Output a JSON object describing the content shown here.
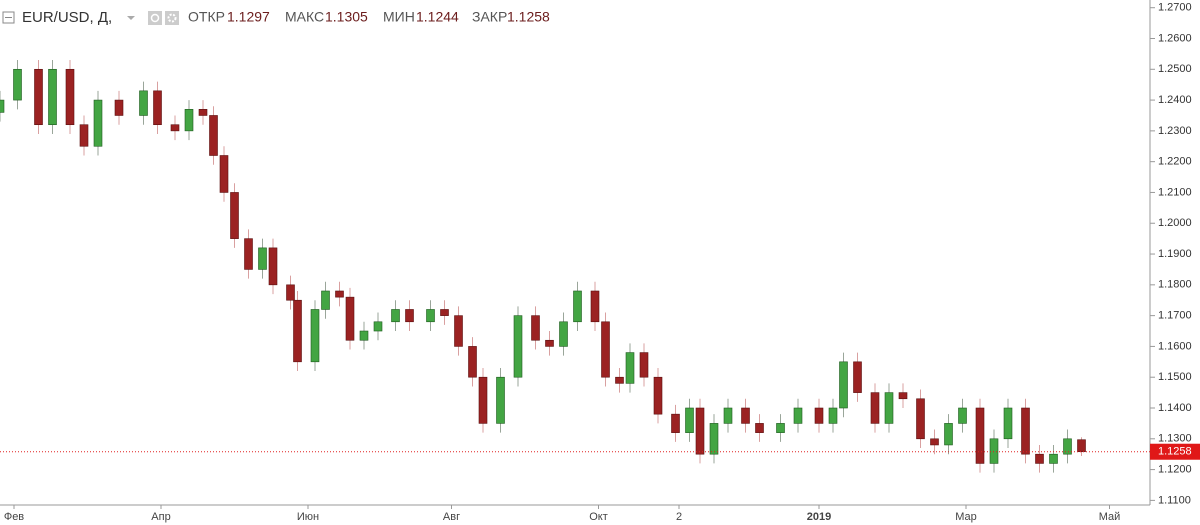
{
  "chart_data": {
    "type": "candlestick",
    "header": {
      "symbol": "EUR/USD, Д,",
      "open_label": "ОТКР",
      "high_label": "МАКС",
      "low_label": "МИН",
      "close_label": "ЗАКР"
    },
    "up_color": "#43a543",
    "down_color": "#9b2222",
    "x": [
      -4,
      1,
      7,
      11,
      16,
      20,
      24,
      30,
      37,
      41,
      46,
      50,
      54,
      57,
      60,
      63,
      67,
      71,
      74,
      79,
      81,
      86,
      89,
      93,
      96,
      100,
      104,
      109,
      113,
      119,
      123,
      127,
      131,
      134,
      139,
      144,
      149,
      153,
      157,
      161,
      166,
      169,
      173,
      176,
      180,
      184,
      189,
      193,
      196,
      200,
      204,
      209,
      213,
      219,
      224,
      230,
      234,
      237,
      241,
      246,
      250,
      254,
      259,
      263,
      267,
      271,
      276,
      280,
      284,
      289,
      293,
      297,
      301,
      305
    ],
    "open": [
      1.236,
      1.24,
      1.25,
      1.232,
      1.25,
      1.232,
      1.225,
      1.24,
      1.235,
      1.243,
      1.232,
      1.23,
      1.237,
      1.235,
      1.222,
      1.21,
      1.195,
      1.185,
      1.192,
      1.18,
      1.175,
      1.155,
      1.172,
      1.178,
      1.176,
      1.162,
      1.165,
      1.168,
      1.172,
      1.168,
      1.172,
      1.17,
      1.16,
      1.15,
      1.135,
      1.15,
      1.17,
      1.162,
      1.16,
      1.168,
      1.178,
      1.168,
      1.15,
      1.148,
      1.158,
      1.15,
      1.138,
      1.132,
      1.14,
      1.125,
      1.135,
      1.14,
      1.135,
      1.132,
      1.135,
      1.14,
      1.135,
      1.14,
      1.155,
      1.145,
      1.135,
      1.145,
      1.143,
      1.13,
      1.128,
      1.135,
      1.14,
      1.122,
      1.13,
      1.14,
      1.125,
      1.122,
      1.125,
      1.1297
    ],
    "high": [
      1.243,
      1.253,
      1.253,
      1.253,
      1.253,
      1.235,
      1.243,
      1.243,
      1.246,
      1.246,
      1.235,
      1.24,
      1.24,
      1.238,
      1.225,
      1.213,
      1.198,
      1.195,
      1.195,
      1.183,
      1.178,
      1.175,
      1.181,
      1.181,
      1.179,
      1.168,
      1.171,
      1.175,
      1.175,
      1.175,
      1.175,
      1.173,
      1.163,
      1.153,
      1.153,
      1.173,
      1.173,
      1.165,
      1.171,
      1.181,
      1.181,
      1.171,
      1.153,
      1.161,
      1.161,
      1.153,
      1.141,
      1.143,
      1.143,
      1.138,
      1.143,
      1.143,
      1.138,
      1.138,
      1.143,
      1.143,
      1.143,
      1.158,
      1.158,
      1.148,
      1.148,
      1.148,
      1.146,
      1.133,
      1.138,
      1.143,
      1.143,
      1.133,
      1.143,
      1.143,
      1.128,
      1.128,
      1.133,
      1.1305
    ],
    "low": [
      1.233,
      1.237,
      1.229,
      1.229,
      1.229,
      1.222,
      1.222,
      1.232,
      1.232,
      1.229,
      1.227,
      1.227,
      1.232,
      1.219,
      1.207,
      1.192,
      1.182,
      1.182,
      1.177,
      1.172,
      1.152,
      1.152,
      1.169,
      1.173,
      1.159,
      1.159,
      1.162,
      1.165,
      1.165,
      1.165,
      1.167,
      1.157,
      1.147,
      1.132,
      1.132,
      1.147,
      1.159,
      1.157,
      1.157,
      1.165,
      1.165,
      1.147,
      1.145,
      1.145,
      1.147,
      1.135,
      1.129,
      1.129,
      1.122,
      1.122,
      1.132,
      1.132,
      1.129,
      1.129,
      1.132,
      1.132,
      1.132,
      1.137,
      1.142,
      1.132,
      1.132,
      1.14,
      1.127,
      1.125,
      1.125,
      1.132,
      1.119,
      1.119,
      1.127,
      1.122,
      1.119,
      1.119,
      1.122,
      1.1244
    ],
    "close": [
      1.24,
      1.25,
      1.232,
      1.25,
      1.232,
      1.225,
      1.24,
      1.235,
      1.243,
      1.232,
      1.23,
      1.237,
      1.235,
      1.222,
      1.21,
      1.195,
      1.185,
      1.192,
      1.18,
      1.175,
      1.155,
      1.172,
      1.178,
      1.176,
      1.162,
      1.165,
      1.168,
      1.172,
      1.168,
      1.172,
      1.17,
      1.16,
      1.15,
      1.135,
      1.15,
      1.17,
      1.162,
      1.16,
      1.168,
      1.178,
      1.168,
      1.15,
      1.148,
      1.158,
      1.15,
      1.138,
      1.132,
      1.14,
      1.125,
      1.135,
      1.14,
      1.135,
      1.132,
      1.135,
      1.14,
      1.135,
      1.14,
      1.155,
      1.145,
      1.135,
      1.145,
      1.143,
      1.13,
      1.128,
      1.135,
      1.14,
      1.122,
      1.13,
      1.14,
      1.125,
      1.122,
      1.125,
      1.13,
      1.1258
    ],
    "xlim": [
      -4,
      324
    ],
    "xticks": [
      {
        "value": 0,
        "label": "Фев"
      },
      {
        "value": 42,
        "label": "Апр"
      },
      {
        "value": 84,
        "label": "Июн"
      },
      {
        "value": 125,
        "label": "Авг"
      },
      {
        "value": 167,
        "label": "Окт"
      },
      {
        "value": 190,
        "label": "2"
      },
      {
        "value": 230,
        "label": "2019"
      },
      {
        "value": 272,
        "label": "Мар"
      },
      {
        "value": 313,
        "label": "Май"
      }
    ],
    "ylim": [
      1.1085,
      1.2725
    ],
    "yticks": [
      {
        "value": 1.11,
        "label": "1.1100"
      },
      {
        "value": 1.12,
        "label": "1.1200"
      },
      {
        "value": 1.13,
        "label": "1.1300"
      },
      {
        "value": 1.14,
        "label": "1.1400"
      },
      {
        "value": 1.15,
        "label": "1.1500"
      },
      {
        "value": 1.16,
        "label": "1.1600"
      },
      {
        "value": 1.17,
        "label": "1.1700"
      },
      {
        "value": 1.18,
        "label": "1.1800"
      },
      {
        "value": 1.19,
        "label": "1.1900"
      },
      {
        "value": 1.2,
        "label": "1.2000"
      },
      {
        "value": 1.21,
        "label": "1.2100"
      },
      {
        "value": 1.22,
        "label": "1.2200"
      },
      {
        "value": 1.23,
        "label": "1.2300"
      },
      {
        "value": 1.24,
        "label": "1.2400"
      },
      {
        "value": 1.25,
        "label": "1.2500"
      },
      {
        "value": 1.26,
        "label": "1.2600"
      },
      {
        "value": 1.27,
        "label": "1.2700"
      }
    ]
  }
}
